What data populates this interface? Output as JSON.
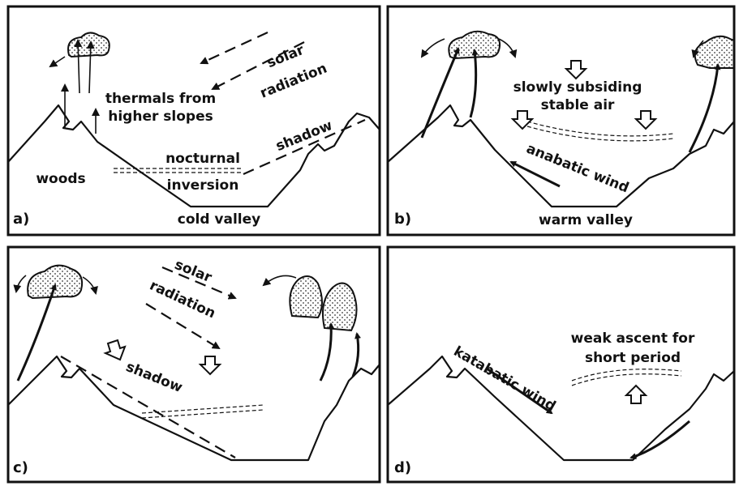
{
  "panels": [
    {
      "label": "a)",
      "texts": [
        "solar",
        "radiation",
        "thermals from",
        "higher slopes",
        "shadow",
        "nocturnal",
        "inversion",
        "woods",
        "cold valley"
      ]
    },
    {
      "label": "b)",
      "texts": [
        "slowly subsiding",
        "stable air",
        "anabatic wind",
        "warm valley"
      ]
    },
    {
      "label": "c)",
      "texts": [
        "solar",
        "radiation",
        "shadow"
      ]
    },
    {
      "label": "d)",
      "texts": [
        "weak ascent for",
        "short period",
        "katabatic wind"
      ]
    }
  ]
}
